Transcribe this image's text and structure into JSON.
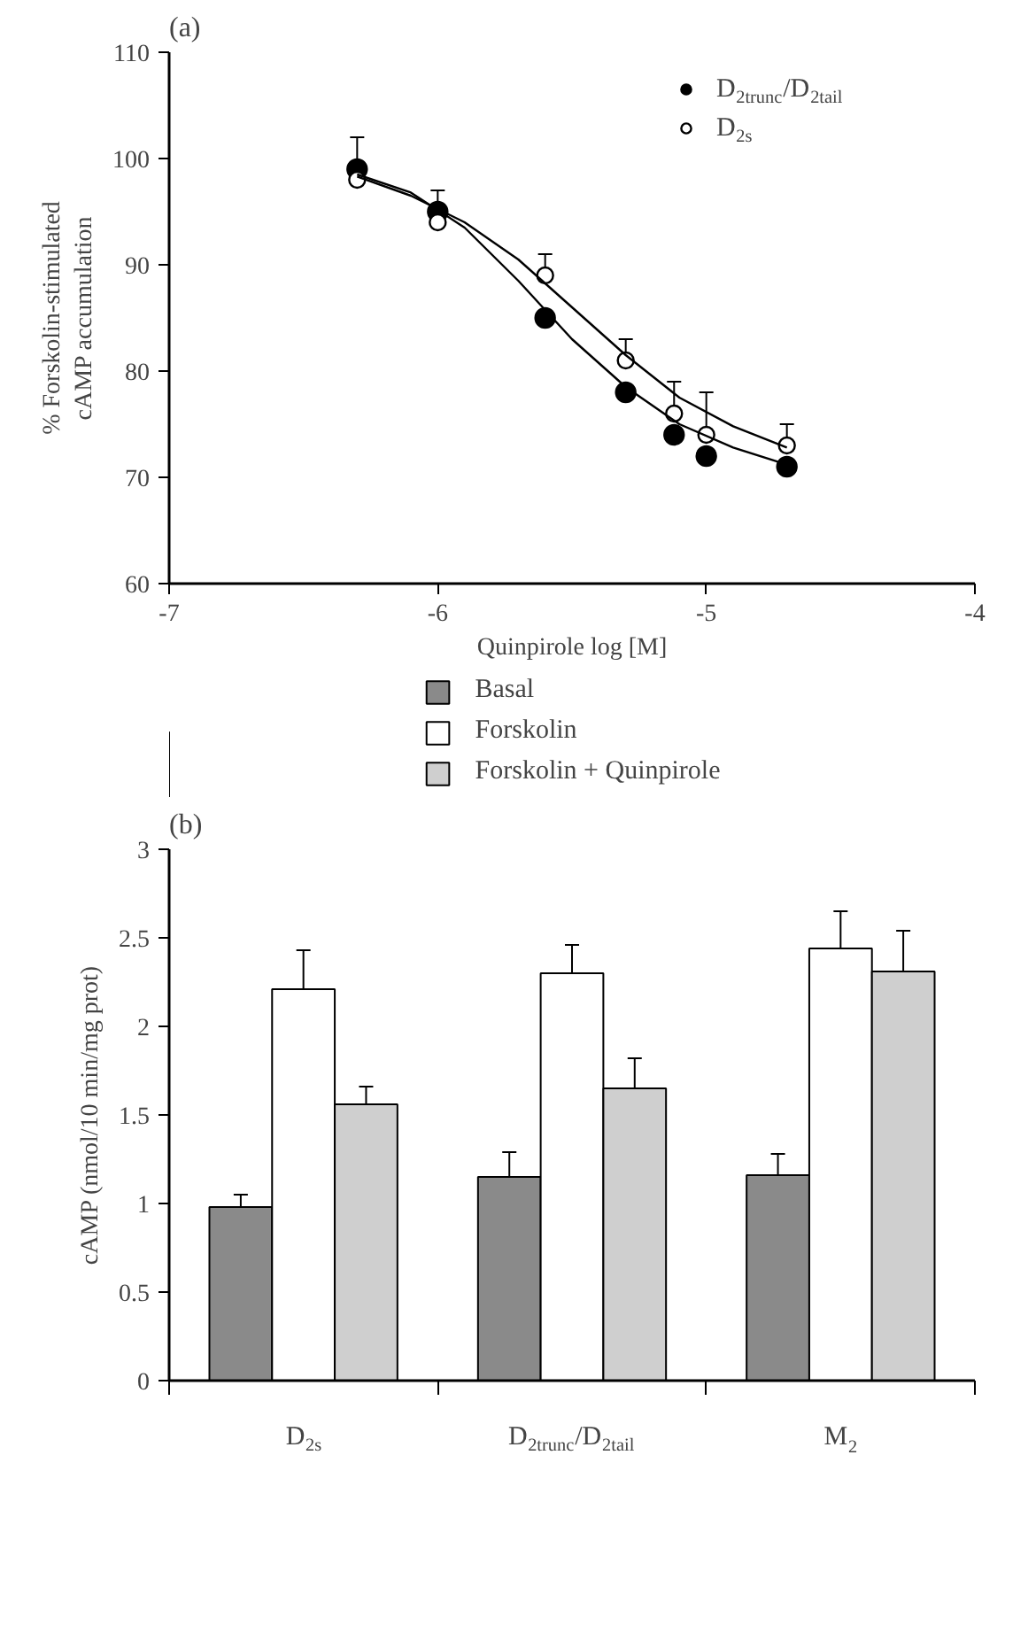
{
  "chart_data": [
    {
      "type": "scatter",
      "title": "(a)",
      "xlabel": "Quinpirole log [M]",
      "ylabel": "% Forskolin-stimulated\ncAMP accumulation",
      "xlim": [
        -7,
        -4
      ],
      "xticks": [
        -7,
        -6,
        -5,
        -4
      ],
      "ylim": [
        60,
        110
      ],
      "yticks": [
        60,
        70,
        80,
        90,
        100,
        110
      ],
      "grid": false,
      "legend": "top right",
      "marker": "circle",
      "series": [
        {
          "name": "D$_{2trunc}$/D$_{2tail}$",
          "color": "#000000",
          "x": [
            -6.3,
            -6,
            -5.6,
            -5.3,
            -5.12,
            -5,
            -4.7
          ],
          "values": [
            99,
            95,
            85,
            78,
            74,
            72,
            71
          ],
          "errors": [
            [
              99,
              102
            ],
            [
              95,
              97
            ],
            null,
            null,
            null,
            null,
            null
          ]
        },
        {
          "name": "D$_{2s}$",
          "color": "#ffffff",
          "x": [
            -6.3,
            -6,
            -5.6,
            -5.3,
            -5.12,
            -5,
            -4.7
          ],
          "values": [
            98,
            94,
            89,
            81,
            76,
            74,
            73
          ],
          "errors": [
            null,
            null,
            [
              89,
              91
            ],
            [
              81,
              83
            ],
            [
              76,
              79
            ],
            [
              74,
              78
            ],
            [
              73,
              75
            ]
          ]
        },
        {
          "type": "line",
          "marker": "none",
          "color": "#000000",
          "x": [
            -6.3,
            -6.1,
            -5.9,
            -5.7,
            -5.5,
            -5.3,
            -5.1,
            -4.9,
            -4.7
          ],
          "values": [
            98.5,
            96.8,
            93.5,
            88.5,
            83,
            78.5,
            75,
            72.8,
            71.2
          ]
        },
        {
          "type": "line",
          "marker": "none",
          "color": "#000000",
          "x": [
            -6.3,
            -6.1,
            -5.9,
            -5.7,
            -5.5,
            -5.3,
            -5.1,
            -4.9,
            -4.7
          ],
          "values": [
            98.3,
            96.5,
            94,
            90.5,
            86,
            81.5,
            77.5,
            74.8,
            72.8
          ]
        }
      ]
    },
    {
      "type": "bar",
      "title": "(b)",
      "ylabel": "cAMP (nmol/10 min/mg prot)",
      "categories": [
        "D$_{2s}$",
        "D$_{2trunc}$/D$_{2tail}$",
        "M$_{2}$"
      ],
      "ylim": [
        0,
        3
      ],
      "yticks": [
        0,
        0.5,
        1,
        1.5,
        2,
        2.5,
        3
      ],
      "grid": false,
      "legend": "top",
      "series": [
        {
          "name": "Basal",
          "color": "#8a8a8a",
          "values": [
            0.98,
            1.15,
            1.16
          ],
          "errors": [
            [
              0.98,
              1.05
            ],
            [
              1.15,
              1.29
            ],
            [
              1.16,
              1.28
            ]
          ]
        },
        {
          "name": "Forskolin",
          "color": "#ffffff",
          "values": [
            2.21,
            2.3,
            2.44
          ],
          "errors": [
            [
              2.21,
              2.43
            ],
            [
              2.3,
              2.46
            ],
            [
              2.44,
              2.65
            ]
          ]
        },
        {
          "name": "Forskolin + Quinpirole",
          "color": "#cfcfcf",
          "values": [
            1.56,
            1.65,
            2.31
          ],
          "errors": [
            [
              1.56,
              1.66
            ],
            [
              1.65,
              1.82
            ],
            [
              2.31,
              2.54
            ]
          ]
        }
      ]
    }
  ]
}
